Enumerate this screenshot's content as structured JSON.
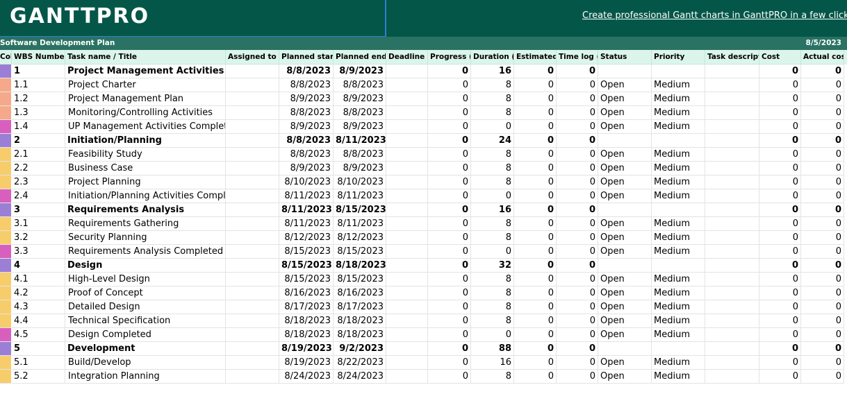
{
  "header": {
    "logo": "GANTTPRO",
    "promo_link": "Create professional Gantt charts in GanttPRO in a few clicks"
  },
  "sheet": {
    "title": "Software Development Plan",
    "date": "8/5/2023"
  },
  "colors": {
    "banner": "#045748",
    "summary": "#9b7fd6",
    "task_peach": "#f5a98a",
    "task_yellow": "#f7cd6b",
    "milestone": "#d95fbe"
  },
  "columns": [
    "Color",
    "WBS Number",
    "Task name / Title",
    "Assigned to",
    "Planned start date",
    "Planned end date",
    "Deadline",
    "Progress (%)",
    "Duration (hours)",
    "Estimated hours",
    "Time log (minutes)",
    "Status",
    "Priority",
    "Task description",
    "Cost",
    "Actual cost"
  ],
  "rows": [
    {
      "color": "#9b7fd6",
      "wbs": "1",
      "task": "Project Management Activities",
      "assigned": "",
      "start": "8/8/2023",
      "end": "8/9/2023",
      "deadline": "",
      "progress": "0",
      "duration": "16",
      "estimated": "0",
      "timelog": "0",
      "status": "",
      "priority": "",
      "description": "",
      "cost": "0",
      "actual": "0",
      "bold": true
    },
    {
      "color": "#f5a98a",
      "wbs": "1.1",
      "task": "Project Charter",
      "assigned": "",
      "start": "8/8/2023",
      "end": "8/8/2023",
      "deadline": "",
      "progress": "0",
      "duration": "8",
      "estimated": "0",
      "timelog": "0",
      "status": "Open",
      "priority": "Medium",
      "description": "",
      "cost": "0",
      "actual": "0",
      "bold": false
    },
    {
      "color": "#f5a98a",
      "wbs": "1.2",
      "task": "Project Management Plan",
      "assigned": "",
      "start": "8/9/2023",
      "end": "8/9/2023",
      "deadline": "",
      "progress": "0",
      "duration": "8",
      "estimated": "0",
      "timelog": "0",
      "status": "Open",
      "priority": "Medium",
      "description": "",
      "cost": "0",
      "actual": "0",
      "bold": false
    },
    {
      "color": "#f5a98a",
      "wbs": "1.3",
      "task": "Monitoring/Controlling Activities",
      "assigned": "",
      "start": "8/8/2023",
      "end": "8/8/2023",
      "deadline": "",
      "progress": "0",
      "duration": "8",
      "estimated": "0",
      "timelog": "0",
      "status": "Open",
      "priority": "Medium",
      "description": "",
      "cost": "0",
      "actual": "0",
      "bold": false
    },
    {
      "color": "#d95fbe",
      "wbs": "1.4",
      "task": "UP Management Activities Completed",
      "assigned": "",
      "start": "8/9/2023",
      "end": "8/9/2023",
      "deadline": "",
      "progress": "0",
      "duration": "0",
      "estimated": "0",
      "timelog": "0",
      "status": "Open",
      "priority": "Medium",
      "description": "",
      "cost": "0",
      "actual": "0",
      "bold": false
    },
    {
      "color": "#9b7fd6",
      "wbs": "2",
      "task": "Initiation/Planning",
      "assigned": "",
      "start": "8/8/2023",
      "end": "8/11/2023",
      "deadline": "",
      "progress": "0",
      "duration": "24",
      "estimated": "0",
      "timelog": "0",
      "status": "",
      "priority": "",
      "description": "",
      "cost": "0",
      "actual": "0",
      "bold": true
    },
    {
      "color": "#f7cd6b",
      "wbs": "2.1",
      "task": "Feasibility Study",
      "assigned": "",
      "start": "8/8/2023",
      "end": "8/8/2023",
      "deadline": "",
      "progress": "0",
      "duration": "8",
      "estimated": "0",
      "timelog": "0",
      "status": "Open",
      "priority": "Medium",
      "description": "",
      "cost": "0",
      "actual": "0",
      "bold": false
    },
    {
      "color": "#f7cd6b",
      "wbs": "2.2",
      "task": "Business Case",
      "assigned": "",
      "start": "8/9/2023",
      "end": "8/9/2023",
      "deadline": "",
      "progress": "0",
      "duration": "8",
      "estimated": "0",
      "timelog": "0",
      "status": "Open",
      "priority": "Medium",
      "description": "",
      "cost": "0",
      "actual": "0",
      "bold": false
    },
    {
      "color": "#f7cd6b",
      "wbs": "2.3",
      "task": "Project Planning",
      "assigned": "",
      "start": "8/10/2023",
      "end": "8/10/2023",
      "deadline": "",
      "progress": "0",
      "duration": "8",
      "estimated": "0",
      "timelog": "0",
      "status": "Open",
      "priority": "Medium",
      "description": "",
      "cost": "0",
      "actual": "0",
      "bold": false
    },
    {
      "color": "#d95fbe",
      "wbs": "2.4",
      "task": "Initiation/Planning Activities Completed",
      "assigned": "",
      "start": "8/11/2023",
      "end": "8/11/2023",
      "deadline": "",
      "progress": "0",
      "duration": "0",
      "estimated": "0",
      "timelog": "0",
      "status": "Open",
      "priority": "Medium",
      "description": "",
      "cost": "0",
      "actual": "0",
      "bold": false
    },
    {
      "color": "#9b7fd6",
      "wbs": "3",
      "task": "Requirements Analysis",
      "assigned": "",
      "start": "8/11/2023",
      "end": "8/15/2023",
      "deadline": "",
      "progress": "0",
      "duration": "16",
      "estimated": "0",
      "timelog": "0",
      "status": "",
      "priority": "",
      "description": "",
      "cost": "0",
      "actual": "0",
      "bold": true
    },
    {
      "color": "#f7cd6b",
      "wbs": "3.1",
      "task": "Requirements Gathering",
      "assigned": "",
      "start": "8/11/2023",
      "end": "8/11/2023",
      "deadline": "",
      "progress": "0",
      "duration": "8",
      "estimated": "0",
      "timelog": "0",
      "status": "Open",
      "priority": "Medium",
      "description": "",
      "cost": "0",
      "actual": "0",
      "bold": false
    },
    {
      "color": "#f7cd6b",
      "wbs": "3.2",
      "task": "Security Planning",
      "assigned": "",
      "start": "8/12/2023",
      "end": "8/12/2023",
      "deadline": "",
      "progress": "0",
      "duration": "8",
      "estimated": "0",
      "timelog": "0",
      "status": "Open",
      "priority": "Medium",
      "description": "",
      "cost": "0",
      "actual": "0",
      "bold": false
    },
    {
      "color": "#d95fbe",
      "wbs": "3.3",
      "task": "Requirements Analysis Completed",
      "assigned": "",
      "start": "8/15/2023",
      "end": "8/15/2023",
      "deadline": "",
      "progress": "0",
      "duration": "0",
      "estimated": "0",
      "timelog": "0",
      "status": "Open",
      "priority": "Medium",
      "description": "",
      "cost": "0",
      "actual": "0",
      "bold": false
    },
    {
      "color": "#9b7fd6",
      "wbs": "4",
      "task": "Design",
      "assigned": "",
      "start": "8/15/2023",
      "end": "8/18/2023",
      "deadline": "",
      "progress": "0",
      "duration": "32",
      "estimated": "0",
      "timelog": "0",
      "status": "",
      "priority": "",
      "description": "",
      "cost": "0",
      "actual": "0",
      "bold": true
    },
    {
      "color": "#f7cd6b",
      "wbs": "4.1",
      "task": "High-Level Design",
      "assigned": "",
      "start": "8/15/2023",
      "end": "8/15/2023",
      "deadline": "",
      "progress": "0",
      "duration": "8",
      "estimated": "0",
      "timelog": "0",
      "status": "Open",
      "priority": "Medium",
      "description": "",
      "cost": "0",
      "actual": "0",
      "bold": false
    },
    {
      "color": "#f7cd6b",
      "wbs": "4.2",
      "task": "Proof of Concept",
      "assigned": "",
      "start": "8/16/2023",
      "end": "8/16/2023",
      "deadline": "",
      "progress": "0",
      "duration": "8",
      "estimated": "0",
      "timelog": "0",
      "status": "Open",
      "priority": "Medium",
      "description": "",
      "cost": "0",
      "actual": "0",
      "bold": false
    },
    {
      "color": "#f7cd6b",
      "wbs": "4.3",
      "task": "Detailed Design",
      "assigned": "",
      "start": "8/17/2023",
      "end": "8/17/2023",
      "deadline": "",
      "progress": "0",
      "duration": "8",
      "estimated": "0",
      "timelog": "0",
      "status": "Open",
      "priority": "Medium",
      "description": "",
      "cost": "0",
      "actual": "0",
      "bold": false
    },
    {
      "color": "#f7cd6b",
      "wbs": "4.4",
      "task": "Technical Specification",
      "assigned": "",
      "start": "8/18/2023",
      "end": "8/18/2023",
      "deadline": "",
      "progress": "0",
      "duration": "8",
      "estimated": "0",
      "timelog": "0",
      "status": "Open",
      "priority": "Medium",
      "description": "",
      "cost": "0",
      "actual": "0",
      "bold": false
    },
    {
      "color": "#d95fbe",
      "wbs": "4.5",
      "task": "Design Completed",
      "assigned": "",
      "start": "8/18/2023",
      "end": "8/18/2023",
      "deadline": "",
      "progress": "0",
      "duration": "0",
      "estimated": "0",
      "timelog": "0",
      "status": "Open",
      "priority": "Medium",
      "description": "",
      "cost": "0",
      "actual": "0",
      "bold": false
    },
    {
      "color": "#9b7fd6",
      "wbs": "5",
      "task": "Development",
      "assigned": "",
      "start": "8/19/2023",
      "end": "9/2/2023",
      "deadline": "",
      "progress": "0",
      "duration": "88",
      "estimated": "0",
      "timelog": "0",
      "status": "",
      "priority": "",
      "description": "",
      "cost": "0",
      "actual": "0",
      "bold": true
    },
    {
      "color": "#f7cd6b",
      "wbs": "5.1",
      "task": "Build/Develop",
      "assigned": "",
      "start": "8/19/2023",
      "end": "8/22/2023",
      "deadline": "",
      "progress": "0",
      "duration": "16",
      "estimated": "0",
      "timelog": "0",
      "status": "Open",
      "priority": "Medium",
      "description": "",
      "cost": "0",
      "actual": "0",
      "bold": false
    },
    {
      "color": "#f7cd6b",
      "wbs": "5.2",
      "task": "Integration Planning",
      "assigned": "",
      "start": "8/24/2023",
      "end": "8/24/2023",
      "deadline": "",
      "progress": "0",
      "duration": "8",
      "estimated": "0",
      "timelog": "0",
      "status": "Open",
      "priority": "Medium",
      "description": "",
      "cost": "0",
      "actual": "0",
      "bold": false
    }
  ]
}
